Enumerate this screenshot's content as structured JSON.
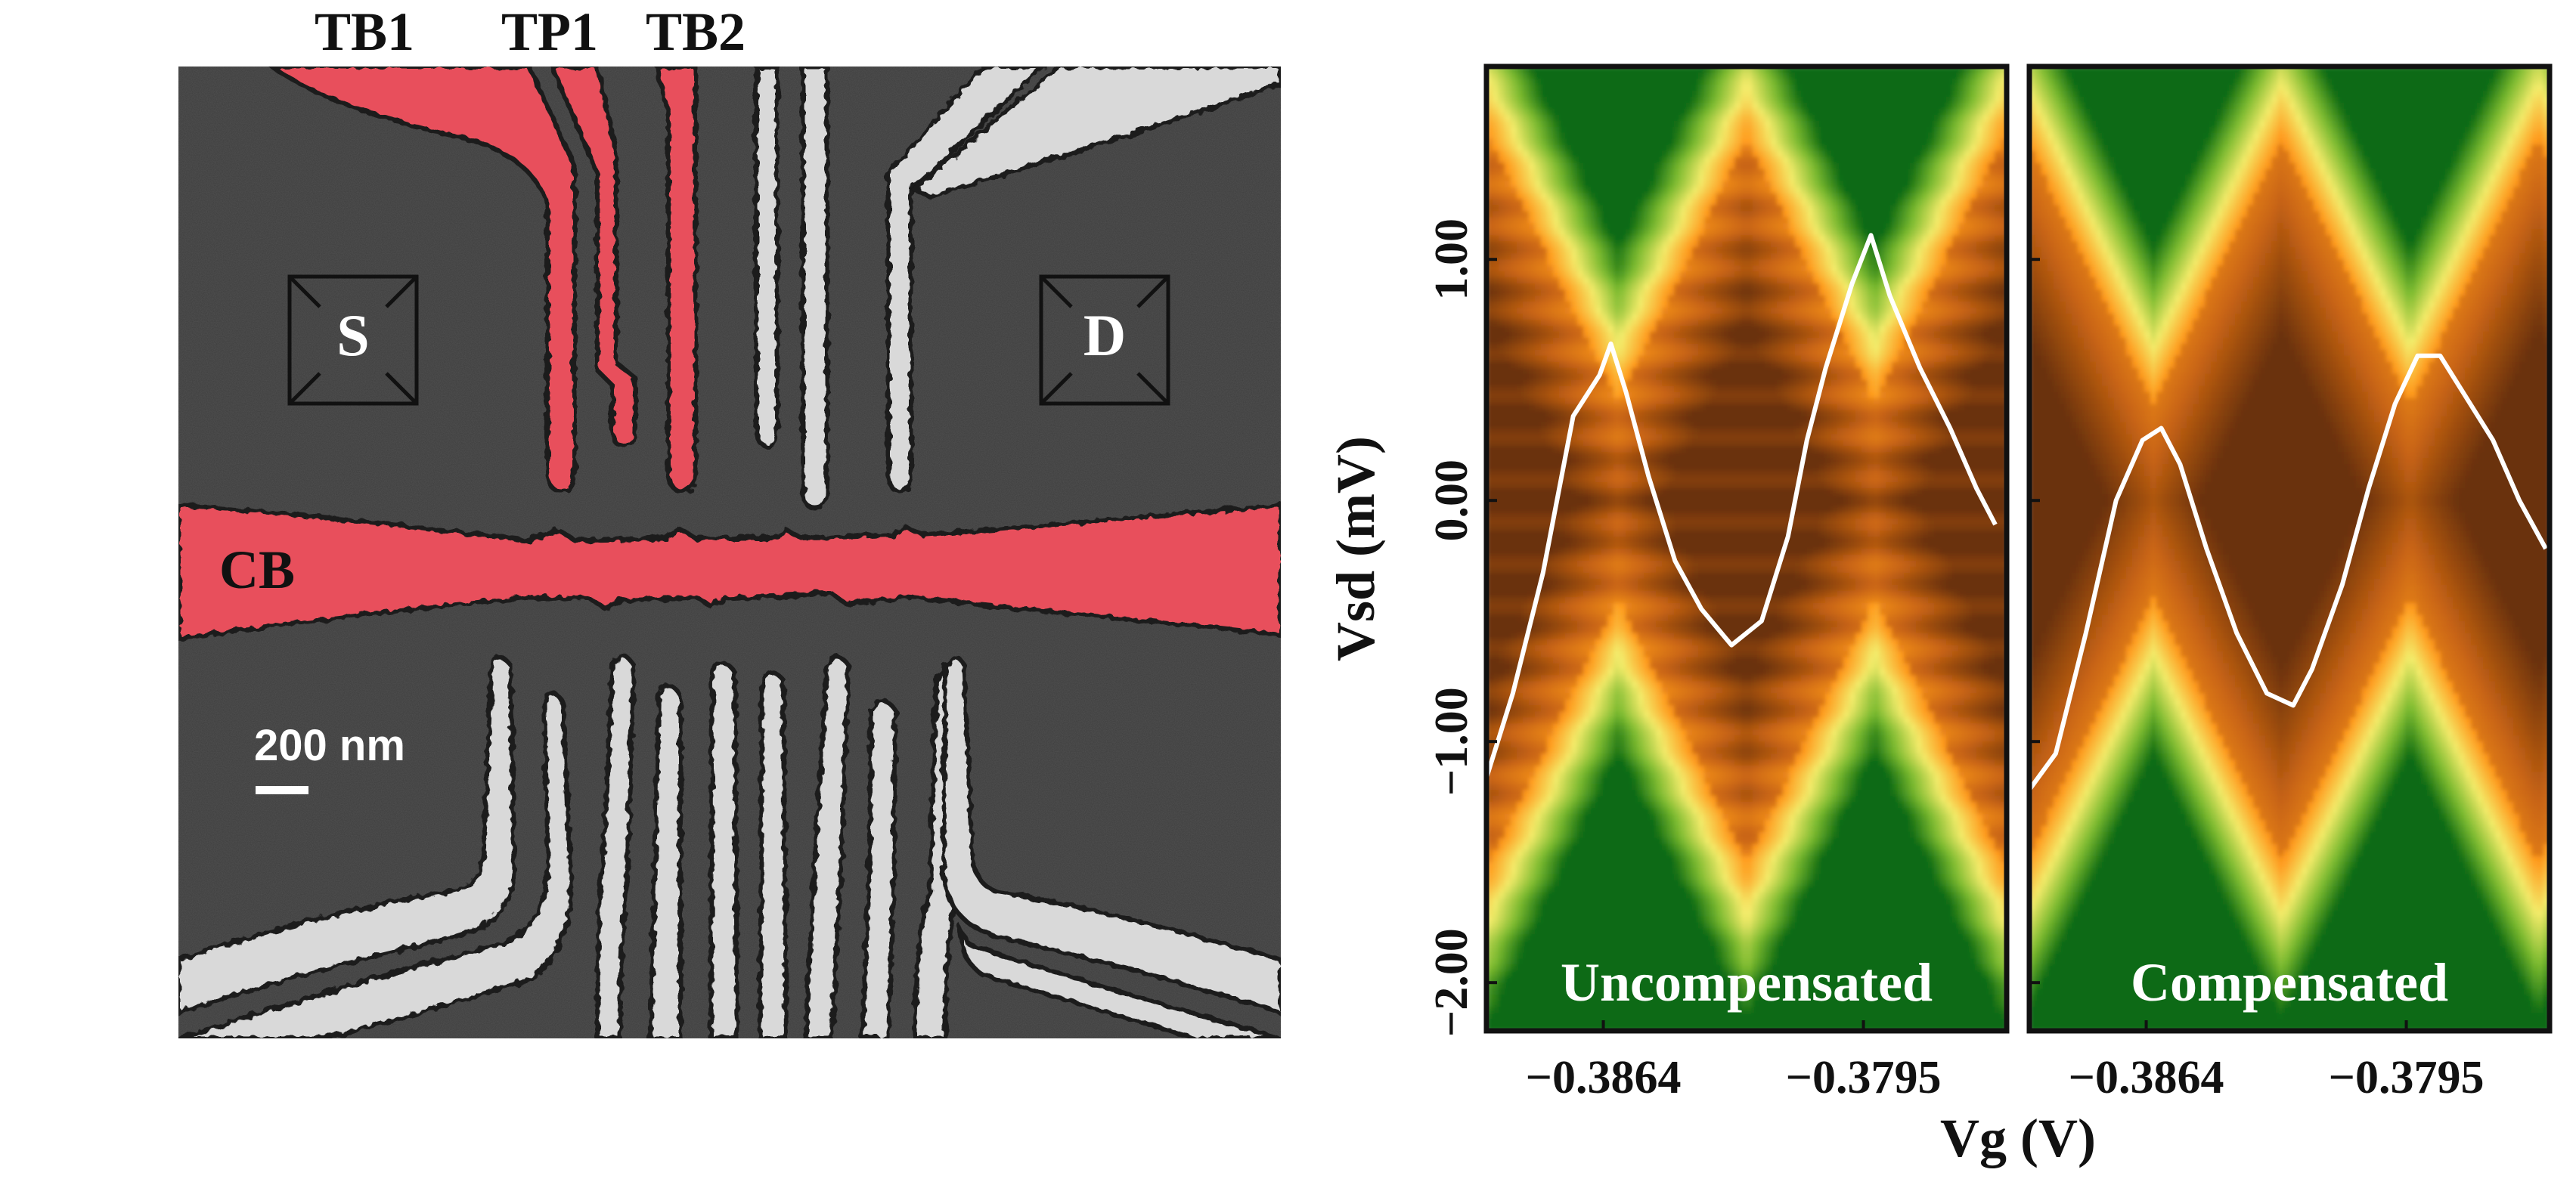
{
  "sem_image": {
    "gate_labels": {
      "tb1": "TB1",
      "tp1": "TP1",
      "tb2": "TB2",
      "cb": "CB"
    },
    "contacts": {
      "source": "S",
      "drain": "D"
    },
    "scale_bar": "200 nm",
    "colors": {
      "highlight_gate": "#e8505b",
      "gate": "#d9d9d9",
      "substrate": "#3d3d3d"
    }
  },
  "chart_data": [
    {
      "type": "heatmap",
      "panel": "Uncompensated",
      "ylabel": "Vsd (mV)",
      "xlabel": "Vg (V)",
      "xlim": [
        -0.3895,
        -0.3757
      ],
      "ylim": [
        -2.2,
        1.8
      ],
      "xticks": [
        "−0.3864",
        "−0.3795"
      ],
      "yticks": [
        "−2.00",
        "−1.00",
        "0.00",
        "1.00"
      ],
      "ytick_values": [
        -2.0,
        -1.0,
        0.0,
        1.0
      ],
      "colormap": [
        "#0e6b12",
        "#7dbb30",
        "#f3eb6a",
        "#ff9b1e",
        "#c86414",
        "#6b3208"
      ],
      "overlay_trace": {
        "color": "#ffffff",
        "x": [
          -0.3895,
          -0.3888,
          -0.388,
          -0.3872,
          -0.3865,
          -0.3862,
          -0.3858,
          -0.3852,
          -0.3845,
          -0.3838,
          -0.383,
          -0.3822,
          -0.3815,
          -0.381,
          -0.3805,
          -0.3798,
          -0.3793,
          -0.3788,
          -0.378,
          -0.3772,
          -0.3765,
          -0.376
        ],
        "y": [
          -1.15,
          -0.8,
          -0.3,
          0.35,
          0.52,
          0.65,
          0.45,
          0.1,
          -0.25,
          -0.45,
          -0.6,
          -0.5,
          -0.15,
          0.25,
          0.55,
          0.9,
          1.1,
          0.85,
          0.55,
          0.3,
          0.05,
          -0.1
        ]
      }
    },
    {
      "type": "heatmap",
      "panel": "Compensated",
      "xlabel": "Vg (V)",
      "xlim": [
        -0.3895,
        -0.3757
      ],
      "ylim": [
        -2.2,
        1.8
      ],
      "xticks": [
        "−0.3864",
        "−0.3795"
      ],
      "colormap": [
        "#0e6b12",
        "#7dbb30",
        "#f3eb6a",
        "#ff9b1e",
        "#c86414",
        "#6b3208"
      ],
      "overlay_trace": {
        "color": "#ffffff",
        "x": [
          -0.3895,
          -0.3888,
          -0.388,
          -0.3872,
          -0.3865,
          -0.386,
          -0.3855,
          -0.3848,
          -0.384,
          -0.3832,
          -0.3825,
          -0.382,
          -0.3812,
          -0.3805,
          -0.3798,
          -0.3792,
          -0.3786,
          -0.378,
          -0.3772,
          -0.3765,
          -0.3758
        ],
        "y": [
          -1.2,
          -1.05,
          -0.55,
          0.0,
          0.25,
          0.3,
          0.15,
          -0.2,
          -0.55,
          -0.8,
          -0.85,
          -0.7,
          -0.35,
          0.05,
          0.4,
          0.6,
          0.6,
          0.45,
          0.25,
          0.0,
          -0.2
        ]
      }
    }
  ],
  "axis_labels": {
    "x": "Vg (V)",
    "y": "Vsd (mV)"
  }
}
